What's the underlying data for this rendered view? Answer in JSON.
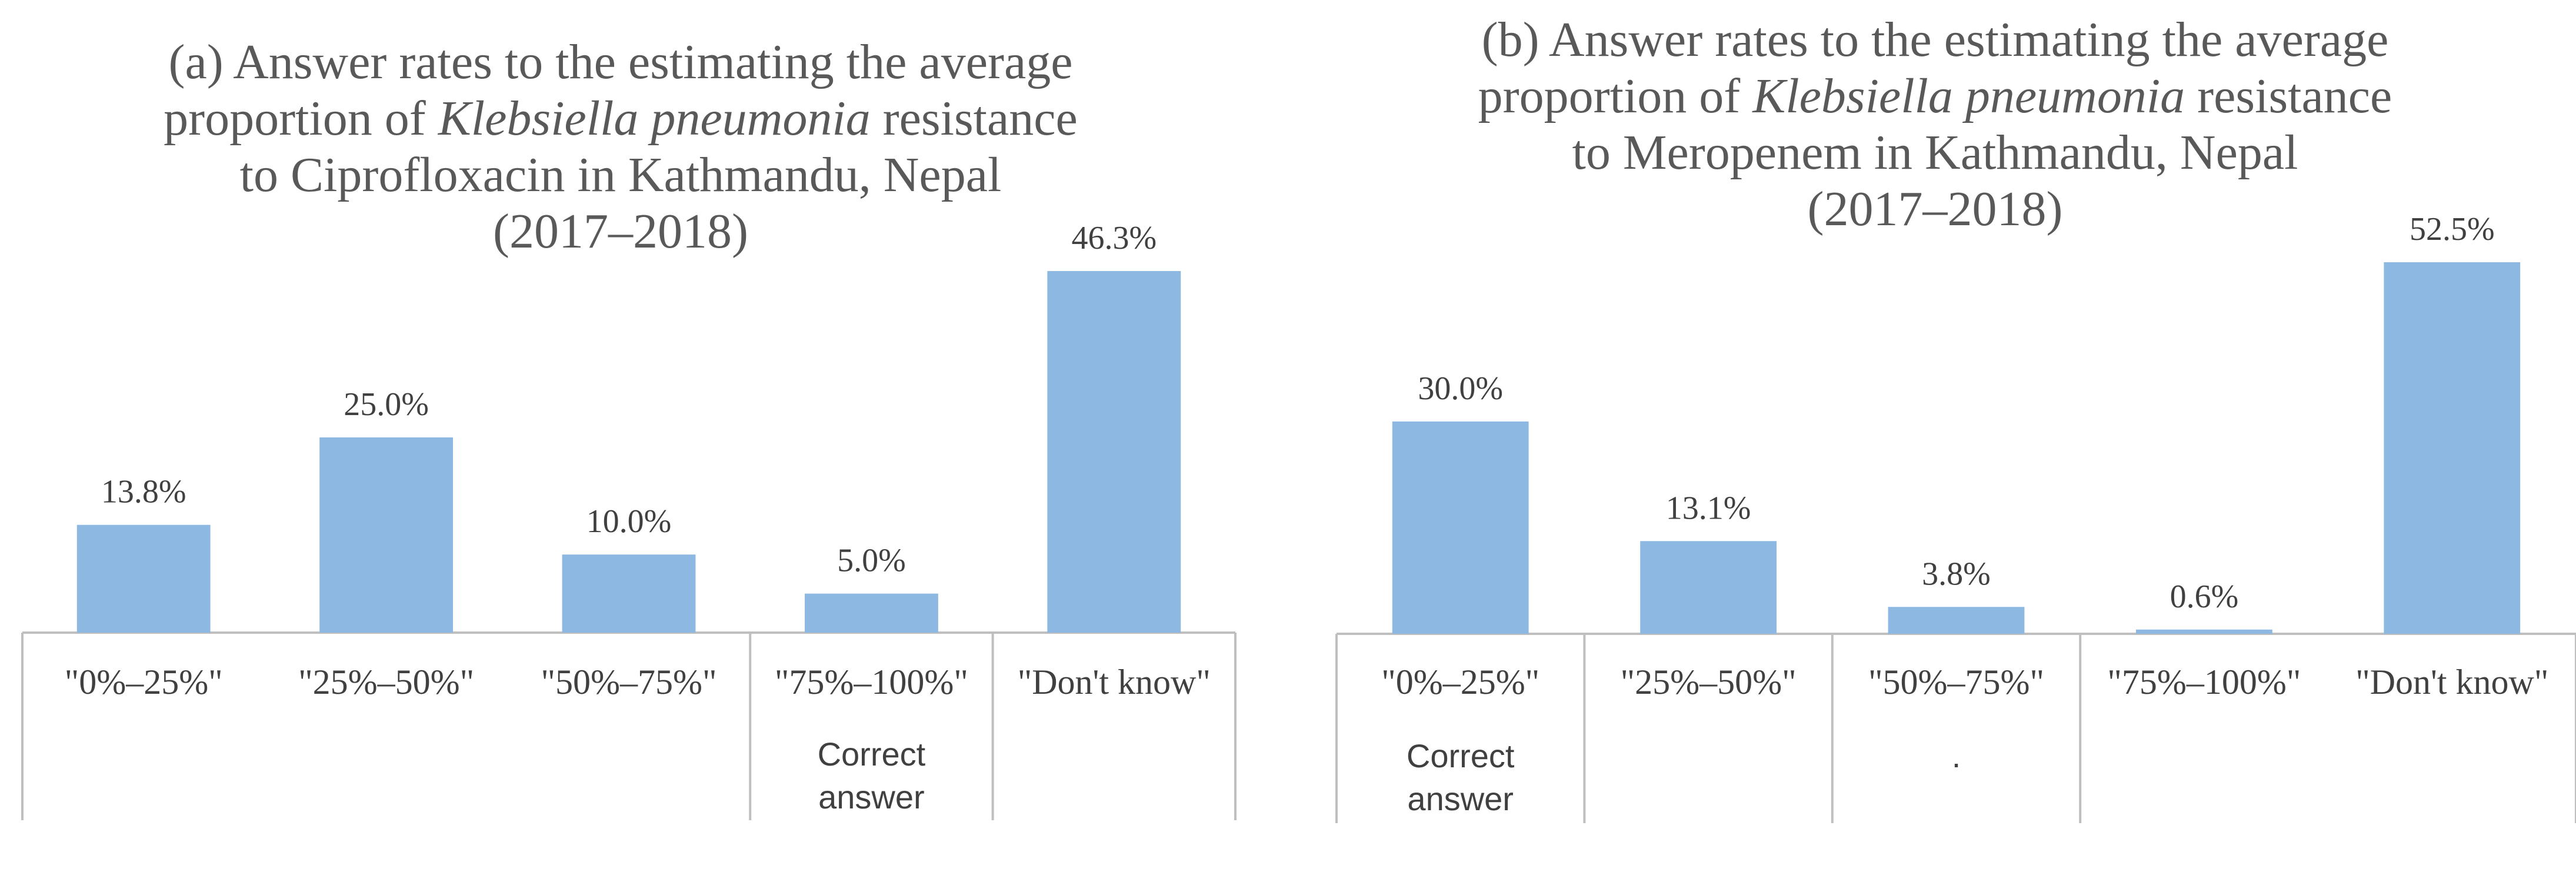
{
  "chart_data": [
    {
      "type": "bar",
      "title": {
        "line1": "(a) Answer rates to the estimating the average",
        "line2_pre": "proportion of ",
        "line2_italic": "Klebsiella pneumonia",
        "line2_post": " resistance",
        "line3": "to Ciprofloxacin in Kathmandu, Nepal",
        "line4": "(2017–2018)"
      },
      "categories": [
        "\"0%–25%\"",
        "\"25%–50%\"",
        "\"50%–75%\"",
        "\"75%–100%\"",
        "\"Don't know\""
      ],
      "values": [
        13.8,
        25.0,
        10.0,
        5.0,
        46.3
      ],
      "data_labels": [
        "13.8%",
        "25.0%",
        "10.0%",
        "5.0%",
        "46.3%"
      ],
      "group_notes": [
        {
          "after_category": 3,
          "lines": [
            "Correct",
            "answer"
          ]
        }
      ],
      "color": "#8db8e2",
      "ylim": [
        0,
        46.3
      ]
    },
    {
      "type": "bar",
      "title": {
        "line1": "(b) Answer rates to the estimating the average",
        "line2_pre": "proportion of ",
        "line2_italic": "Klebsiella pneumonia",
        "line2_post": " resistance",
        "line3": "to Meropenem in Kathmandu, Nepal",
        "line4": "(2017–2018)"
      },
      "categories": [
        "\"0%–25%\"",
        "\"25%–50%\"",
        "\"50%–75%\"",
        "\"75%–100%\"",
        "\"Don't know\""
      ],
      "values": [
        30.0,
        13.1,
        3.8,
        0.6,
        52.5
      ],
      "data_labels": [
        "30.0%",
        "13.1%",
        "3.8%",
        "0.6%",
        "52.5%"
      ],
      "group_notes": [
        {
          "after_category": 0,
          "lines": [
            "Correct",
            "answer"
          ]
        },
        {
          "after_category": 2,
          "lines": [
            "."
          ]
        }
      ],
      "color": "#8db8e2",
      "ylim": [
        0,
        52.5
      ]
    }
  ]
}
